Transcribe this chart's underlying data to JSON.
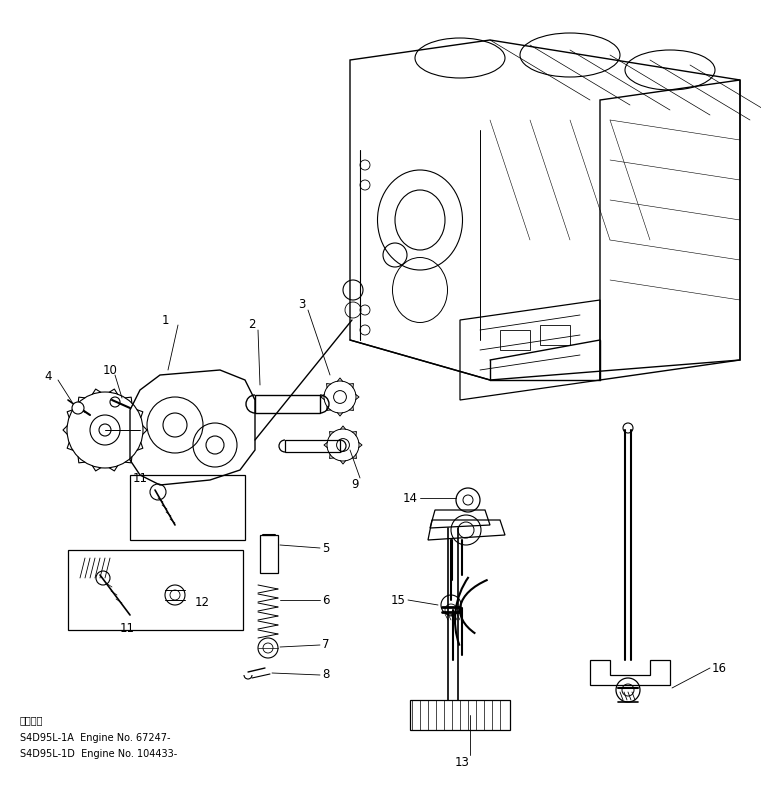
{
  "background_color": "#ffffff",
  "line_color": "#000000",
  "fig_width": 7.61,
  "fig_height": 7.87,
  "dpi": 100,
  "text_bottom_left": [
    "適用号機",
    "S4D95L-1A  Engine No. 67247-",
    "S4D95L-1D  Engine No. 104433-"
  ]
}
